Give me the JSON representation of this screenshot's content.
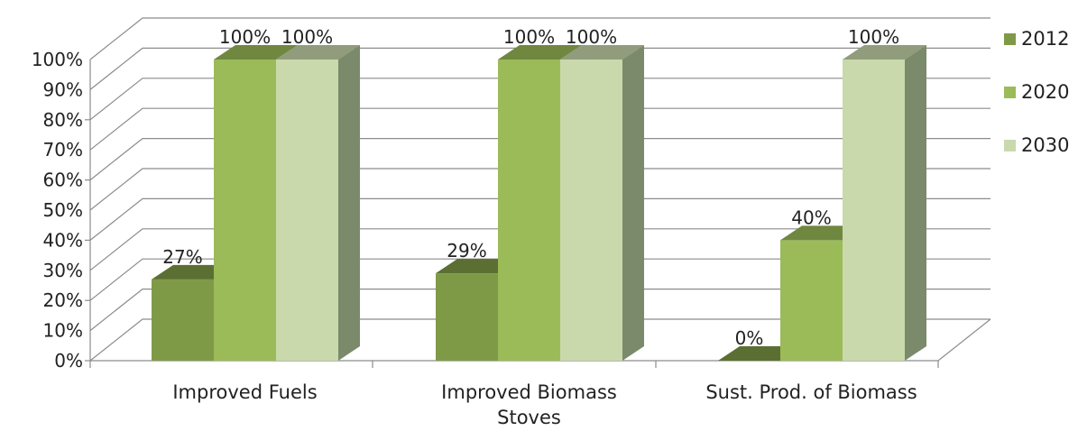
{
  "chart_data": {
    "type": "bar",
    "categories": [
      "Improved Fuels",
      "Improved Biomass Stoves",
      "Sust. Prod. of Biomass"
    ],
    "category_label_lines": [
      [
        "Improved Fuels"
      ],
      [
        "Improved Biomass",
        "Stoves"
      ],
      [
        "Sust. Prod. of Biomass"
      ]
    ],
    "series": [
      {
        "name": "2012",
        "values": [
          27,
          29,
          0
        ],
        "labels": [
          "27%",
          "29%",
          "0%"
        ],
        "color": "#7f9a47"
      },
      {
        "name": "2020",
        "values": [
          100,
          100,
          40
        ],
        "labels": [
          "100%",
          "100%",
          "40%"
        ],
        "color": "#9bbb59"
      },
      {
        "name": "2030",
        "values": [
          100,
          100,
          100
        ],
        "labels": [
          "100%",
          "100%",
          "100%"
        ],
        "color": "#c9d9ac"
      }
    ],
    "y_ticks": [
      "0%",
      "10%",
      "20%",
      "30%",
      "40%",
      "50%",
      "60%",
      "70%",
      "80%",
      "90%",
      "100%"
    ],
    "ylim": [
      0,
      100
    ],
    "title": "",
    "xlabel": "",
    "ylabel": "",
    "grid": true,
    "legend_position": "right",
    "style": "3d-clustered-column"
  }
}
